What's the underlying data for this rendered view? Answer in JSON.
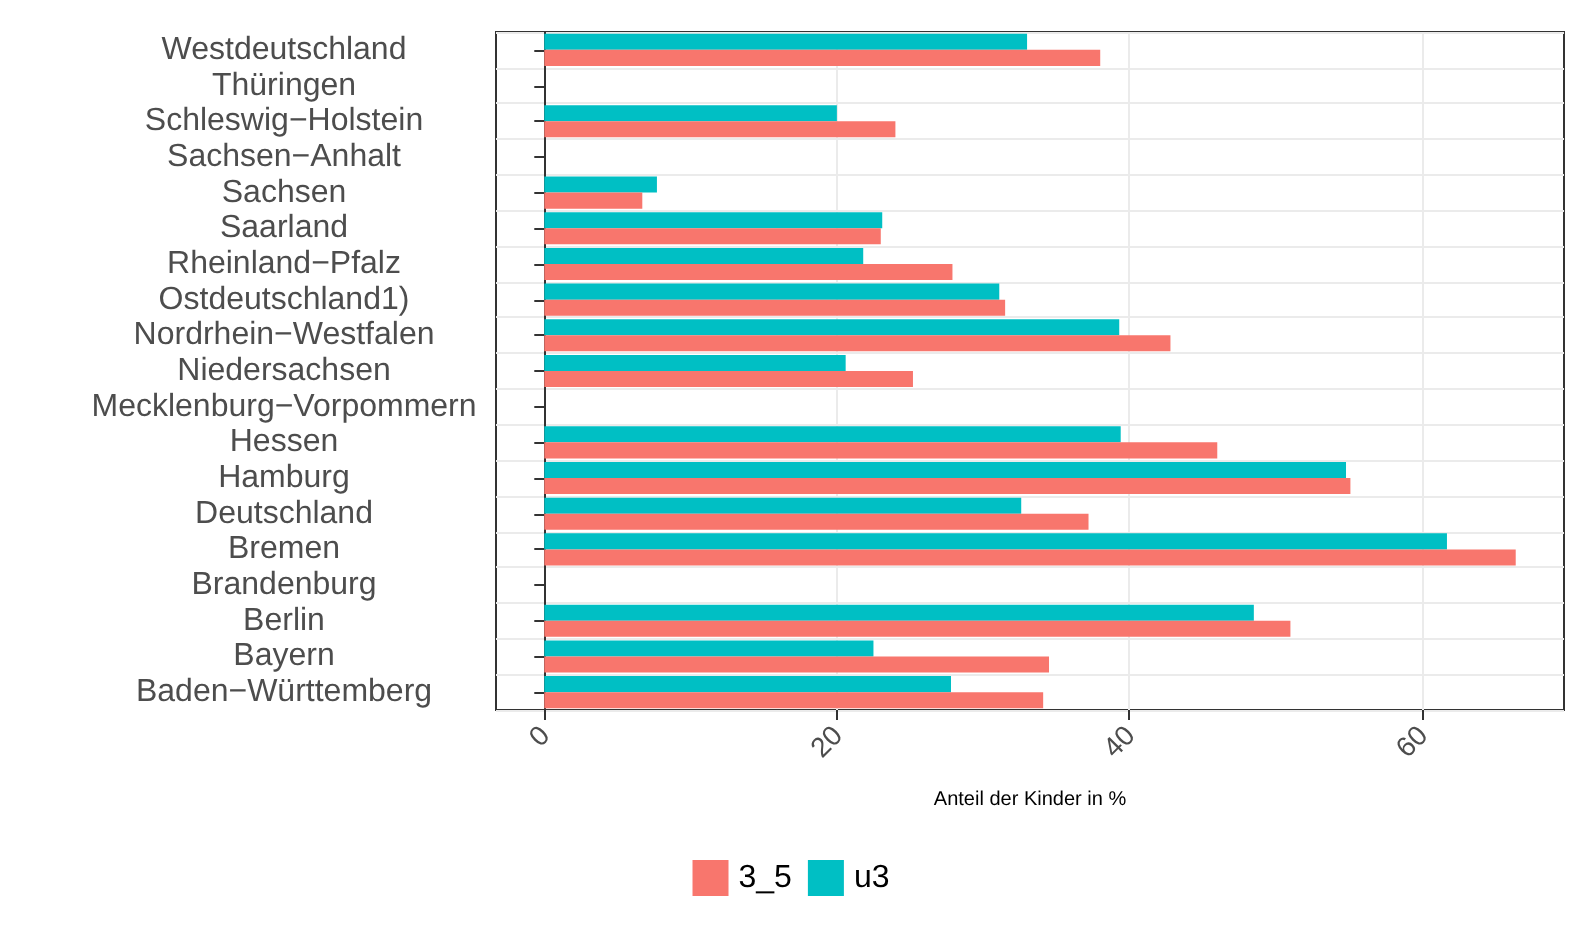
{
  "chart_data": {
    "type": "bar",
    "orientation": "horizontal",
    "xlabel": "Anteil der Kinder in %",
    "categories": [
      "Westdeutschland",
      "Thüringen",
      "Schleswig−Holstein",
      "Sachsen−Anhalt",
      "Sachsen",
      "Saarland",
      "Rheinland−Pfalz",
      "Ostdeutschland1)",
      "Nordrhein−Westfalen",
      "Niedersachsen",
      "Mecklenburg−Vorpommern",
      "Hessen",
      "Hamburg",
      "Deutschland",
      "Bremen",
      "Brandenburg",
      "Berlin",
      "Bayern",
      "Baden−Württemberg"
    ],
    "series": [
      {
        "name": "3_5",
        "color": "#f8766d",
        "values": [
          38.0,
          0,
          24.0,
          0,
          6.7,
          23.0,
          27.9,
          31.5,
          42.8,
          25.2,
          0,
          46.0,
          55.1,
          37.2,
          66.4,
          0,
          51.0,
          34.5,
          34.1
        ]
      },
      {
        "name": "u3",
        "color": "#00bfc4",
        "values": [
          33.0,
          0,
          20.0,
          0,
          7.7,
          23.1,
          21.8,
          31.1,
          39.3,
          20.6,
          0,
          39.4,
          54.8,
          32.6,
          61.7,
          0,
          48.5,
          22.5,
          27.8
        ]
      }
    ],
    "xlim": [
      -3.3,
      69.7
    ],
    "xticks": [
      0,
      20,
      40,
      60
    ],
    "grid": true,
    "legend": "bottom"
  }
}
